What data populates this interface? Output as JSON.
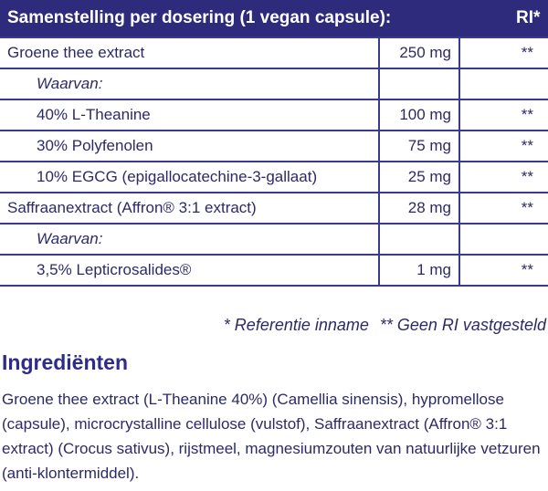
{
  "table": {
    "header": [
      "Samenstelling per dosering (1 vegan capsule):",
      "RI*"
    ],
    "rows": [
      {
        "name": "Groene thee extract",
        "amount": "250 mg",
        "ri": "**"
      },
      {
        "name": "Waarvan:",
        "indent": true,
        "italic": true
      },
      {
        "name": "40% L-Theanine",
        "amount": "100 mg",
        "ri": "**",
        "indent": true
      },
      {
        "name": "30% Polyfenolen",
        "amount": "75 mg",
        "ri": "**",
        "indent": true
      },
      {
        "name": "10%  EGCG (epigallocatechine-3-gallaat)",
        "amount": "25 mg",
        "ri": "**",
        "indent": true
      },
      {
        "name": "Saffraanextract (Affron® 3:1 extract)",
        "amount": "28 mg",
        "ri": "**"
      },
      {
        "name": "Waarvan:",
        "indent": true,
        "italic": true
      },
      {
        "name": "3,5% Lepticrosalides®",
        "amount": "1 mg",
        "ri": "**",
        "indent": true
      }
    ],
    "footnotes": [
      "* Referentie inname",
      "** Geen RI vastgesteld"
    ]
  },
  "ingredients": {
    "title": "Ingrediënten",
    "text": "Groene thee extract (L-Theanine 40%) (Camellia sinensis), hypromellose (capsule), microcrystalline cellulose (vulstof), Saffraanextract (Affron® 3:1 extract) (Crocus sativus), rijstmeel, magnesiumzouten van natuurlijke vetzuren (anti-klontermiddel)."
  }
}
